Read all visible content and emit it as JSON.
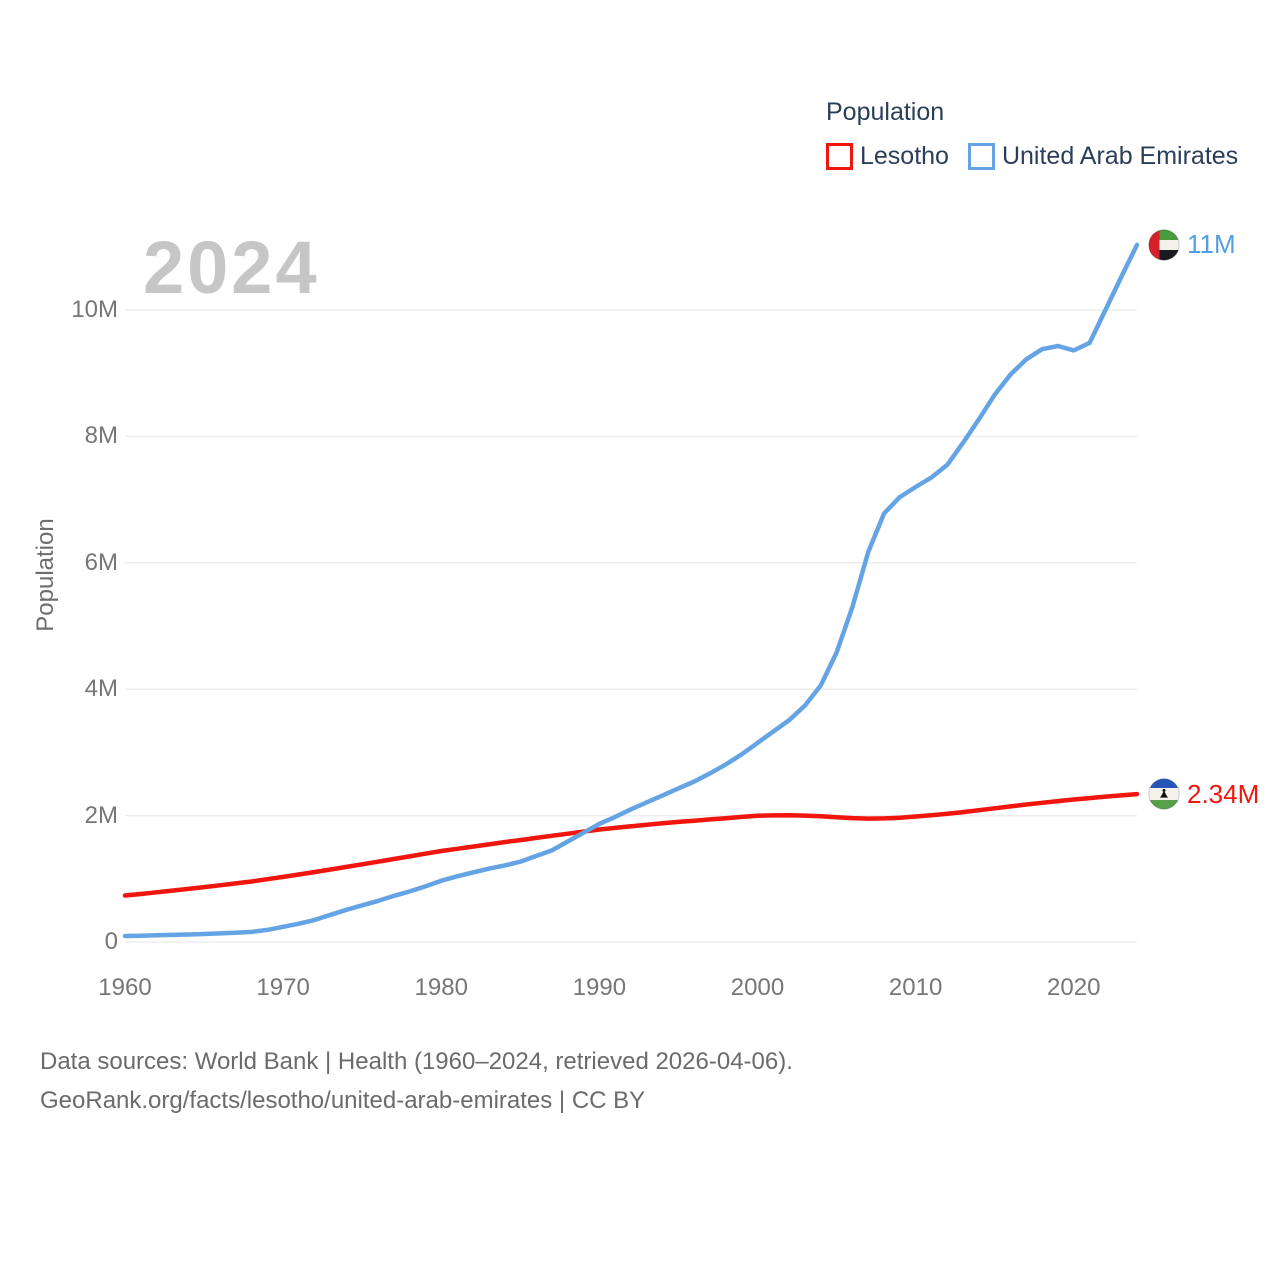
{
  "legend": {
    "title": "Population"
  },
  "watermark": "2024",
  "axes": {
    "y_title": "Population"
  },
  "footer": {
    "line1": "Data sources: World Bank | Health (1960–2024, retrieved 2026-04-06).",
    "line2": "GeoRank.org/facts/lesotho/united-arab-emirates | CC BY"
  },
  "chart_data": {
    "type": "line",
    "title": "Population",
    "xlabel": "",
    "ylabel": "Population",
    "x_start": 1960,
    "x_end": 2024,
    "xticks": [
      1960,
      1970,
      1980,
      1990,
      2000,
      2010,
      2020
    ],
    "yticks": [
      {
        "value": 0,
        "label": "0"
      },
      {
        "value": 2,
        "label": "2M"
      },
      {
        "value": 4,
        "label": "4M"
      },
      {
        "value": 6,
        "label": "6M"
      },
      {
        "value": 8,
        "label": "8M"
      },
      {
        "value": 10,
        "label": "10M"
      }
    ],
    "ylim": [
      0,
      11.5
    ],
    "unit": "millions",
    "grid": "horizontal-only",
    "legend_position": "top-right",
    "series": [
      {
        "name": "Lesotho",
        "color": "#f0160e",
        "label_color": "#f0160e",
        "end_label": "2.34M",
        "flag": "lesotho",
        "values": [
          0.735,
          0.76,
          0.786,
          0.813,
          0.84,
          0.868,
          0.897,
          0.927,
          0.958,
          0.993,
          1.03,
          1.068,
          1.107,
          1.147,
          1.188,
          1.23,
          1.271,
          1.313,
          1.355,
          1.397,
          1.44,
          1.475,
          1.51,
          1.545,
          1.58,
          1.613,
          1.647,
          1.68,
          1.713,
          1.747,
          1.78,
          1.805,
          1.83,
          1.855,
          1.88,
          1.9,
          1.92,
          1.94,
          1.958,
          1.98,
          1.998,
          2.003,
          2.004,
          2.0,
          1.99,
          1.975,
          1.96,
          1.952,
          1.955,
          1.965,
          1.985,
          2.005,
          2.03,
          2.055,
          2.085,
          2.115,
          2.145,
          2.175,
          2.203,
          2.23,
          2.254,
          2.277,
          2.3,
          2.32,
          2.34
        ]
      },
      {
        "name": "United Arab Emirates",
        "color": "#64a4e4",
        "label_color": "#529ee2",
        "end_label": "11M",
        "flag": "uae",
        "values": [
          0.095,
          0.1,
          0.106,
          0.112,
          0.119,
          0.127,
          0.136,
          0.147,
          0.16,
          0.192,
          0.24,
          0.29,
          0.35,
          0.43,
          0.51,
          0.58,
          0.65,
          0.73,
          0.8,
          0.88,
          0.97,
          1.04,
          1.1,
          1.16,
          1.21,
          1.27,
          1.36,
          1.45,
          1.59,
          1.73,
          1.87,
          1.98,
          2.1,
          2.21,
          2.32,
          2.43,
          2.54,
          2.67,
          2.81,
          2.97,
          3.15,
          3.33,
          3.51,
          3.74,
          4.06,
          4.58,
          5.3,
          6.17,
          6.78,
          7.04,
          7.2,
          7.35,
          7.55,
          7.9,
          8.27,
          8.66,
          8.98,
          9.22,
          9.38,
          9.43,
          9.36,
          9.48,
          10.0,
          10.52,
          11.03
        ]
      }
    ]
  }
}
